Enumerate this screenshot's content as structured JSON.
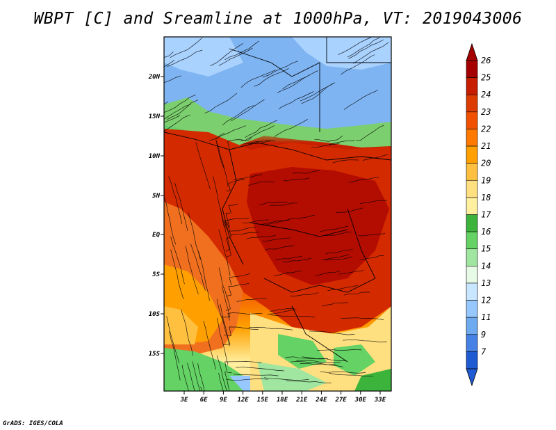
{
  "title": "WBPT [C] and Sreamline at 1000hPa, VT: 2019043006",
  "credit": "GrADS: IGES/COLA",
  "map": {
    "lat_labels": [
      "20N",
      "15N",
      "10N",
      "5N",
      "EQ",
      "5S",
      "10S",
      "15S"
    ],
    "lon_labels": [
      "3E",
      "6E",
      "9E",
      "12E",
      "15E",
      "18E",
      "21E",
      "24E",
      "27E",
      "30E",
      "33E"
    ]
  },
  "colorbar": {
    "labels": [
      "26",
      "25",
      "24",
      "23",
      "22",
      "21",
      "20",
      "19",
      "18",
      "17",
      "16",
      "15",
      "14",
      "13",
      "12",
      "11",
      "9",
      "7"
    ],
    "colors": [
      "#a50000",
      "#c81e00",
      "#dc3c00",
      "#f05000",
      "#ff7800",
      "#ffa000",
      "#ffc040",
      "#ffe080",
      "#fff0a0",
      "#3cb43c",
      "#64d264",
      "#a0e6a0",
      "#e6fae6",
      "#c8e6ff",
      "#96c8ff",
      "#6eaaf0",
      "#4682e6",
      "#1e5ad2"
    ]
  }
}
